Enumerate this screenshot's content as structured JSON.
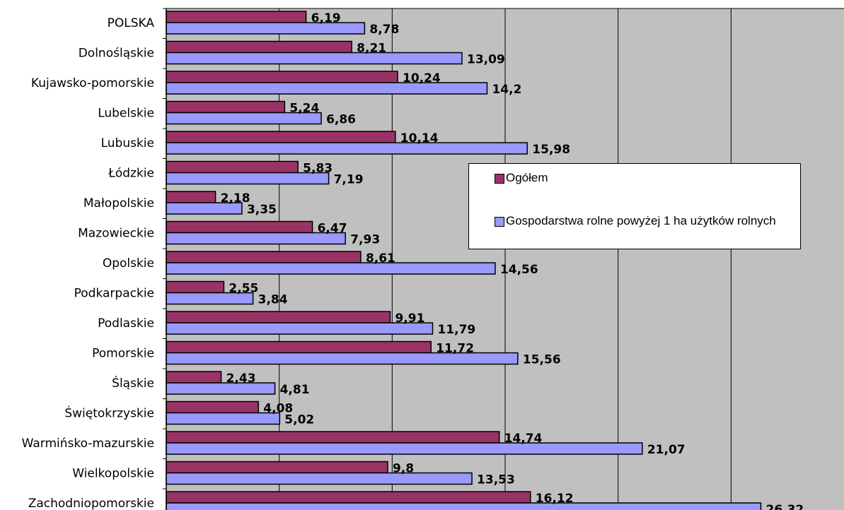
{
  "chart_data": {
    "type": "bar",
    "orientation": "horizontal",
    "categories": [
      "POLSKA",
      "Dolnośląskie",
      "Kujawsko-pomorskie",
      "Lubelskie",
      "Lubuskie",
      "Łódzkie",
      "Małopolskie",
      "Mazowieckie",
      "Opolskie",
      "Podkarpackie",
      "Podlaskie",
      "Pomorskie",
      "Śląskie",
      "Świętokrzyskie",
      "Warmińsko-mazurskie",
      "Wielkopolskie",
      "Zachodniopomorskie"
    ],
    "series": [
      {
        "name": "Ogółem",
        "color": "#993366",
        "values": [
          6.19,
          8.21,
          10.24,
          5.24,
          10.14,
          5.83,
          2.18,
          6.47,
          8.61,
          2.55,
          9.91,
          11.72,
          2.43,
          4.08,
          14.74,
          9.8,
          16.12
        ],
        "labels": [
          "6,19",
          "8,21",
          "10,24",
          "5,24",
          "10,14",
          "5,83",
          "2,18",
          "6,47",
          "8,61",
          "2,55",
          "9,91",
          "11,72",
          "2,43",
          "4,08",
          "14,74",
          "9,8",
          "16,12"
        ]
      },
      {
        "name": "Gospodarstwa rolne powyżej 1 ha użytków rolnych",
        "color": "#9999ff",
        "values": [
          8.78,
          13.09,
          14.2,
          6.86,
          15.98,
          7.19,
          3.35,
          7.93,
          14.56,
          3.84,
          11.79,
          15.56,
          4.81,
          5.02,
          21.07,
          13.53,
          26.32
        ],
        "labels": [
          "8,78",
          "13,09",
          "14,2",
          "6,86",
          "15,98",
          "7,19",
          "3,35",
          "7,93",
          "14,56",
          "3,84",
          "11,79",
          "15,56",
          "4,81",
          "5,02",
          "21,07",
          "13,53",
          "26,32"
        ]
      }
    ],
    "xlim": [
      0,
      30
    ],
    "x_gridlines": [
      5,
      10,
      15,
      20,
      25
    ],
    "grid": true,
    "plot_background": "#c0c0c0",
    "legend_position": "right-middle inside plot"
  }
}
